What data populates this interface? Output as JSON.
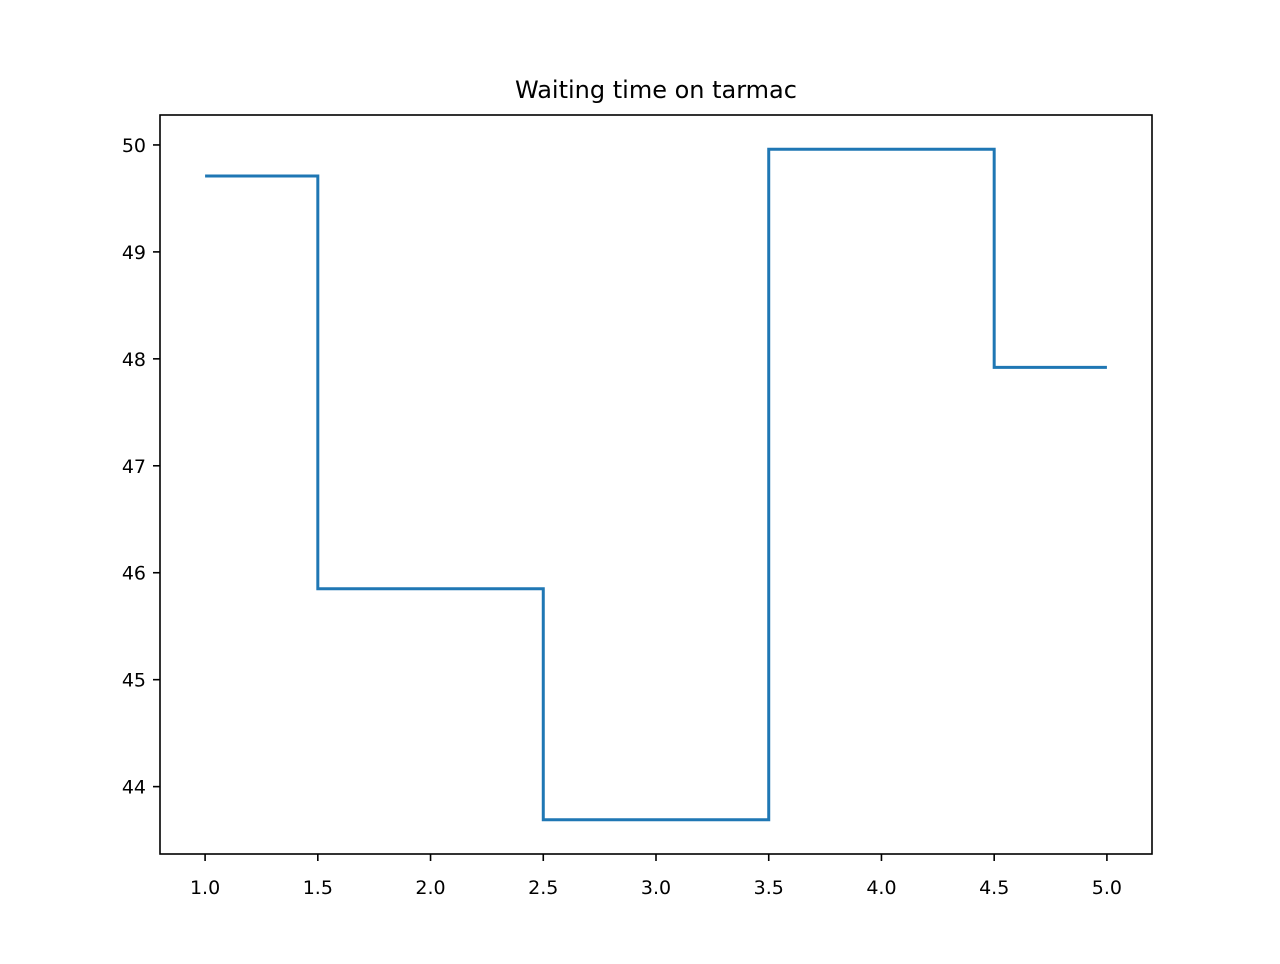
{
  "chart_data": {
    "type": "line",
    "drawstyle": "steps-mid",
    "title": "Waiting time on tarmac",
    "xlabel": "",
    "ylabel": "",
    "x": [
      1,
      2,
      3,
      4,
      5
    ],
    "series": [
      {
        "name": "",
        "color": "#1f77b4",
        "values": [
          49.71,
          45.85,
          43.69,
          49.96,
          47.92
        ]
      }
    ],
    "xlim": [
      0.8,
      5.2
    ],
    "ylim": [
      43.37,
      50.28
    ],
    "xticks": [
      1.0,
      1.5,
      2.0,
      2.5,
      3.0,
      3.5,
      4.0,
      4.5,
      5.0
    ],
    "xtick_labels": [
      "1.0",
      "1.5",
      "2.0",
      "2.5",
      "3.0",
      "3.5",
      "4.0",
      "4.5",
      "5.0"
    ],
    "yticks": [
      44,
      45,
      46,
      47,
      48,
      49,
      50
    ],
    "ytick_labels": [
      "44",
      "45",
      "46",
      "47",
      "48",
      "49",
      "50"
    ],
    "grid": false,
    "legend": "none"
  }
}
